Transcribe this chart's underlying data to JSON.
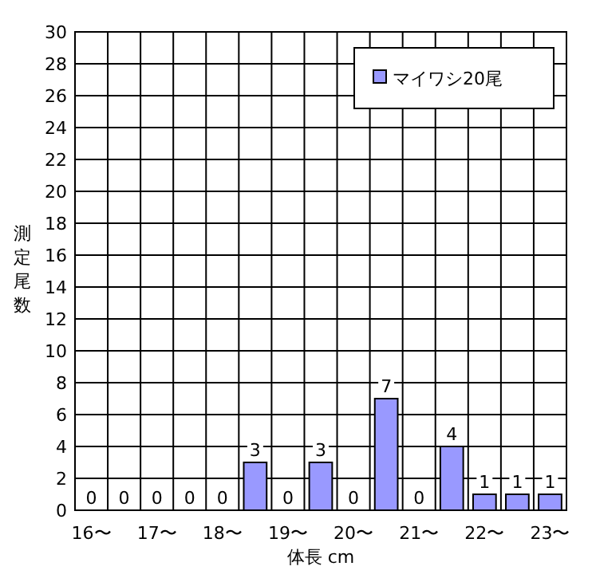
{
  "chart_data": {
    "type": "bar",
    "xlabel": "体長 cm",
    "ylabel": "測定尾数",
    "categories": [
      "16〜",
      null,
      "17〜",
      null,
      "18〜",
      null,
      "19〜",
      null,
      "20〜",
      null,
      "21〜",
      null,
      "22〜",
      null,
      "23〜"
    ],
    "series": [
      {
        "name": "マイワシ20尾",
        "color": "#9999ff",
        "values": [
          0,
          0,
          0,
          0,
          0,
          3,
          0,
          3,
          0,
          7,
          0,
          4,
          1,
          1,
          1
        ]
      }
    ],
    "ylim": [
      0,
      30
    ],
    "yticks": [
      0,
      2,
      4,
      6,
      8,
      10,
      12,
      14,
      16,
      18,
      20,
      22,
      24,
      26,
      28,
      30
    ],
    "grid": true,
    "legend": "top right",
    "data_labels": true
  }
}
